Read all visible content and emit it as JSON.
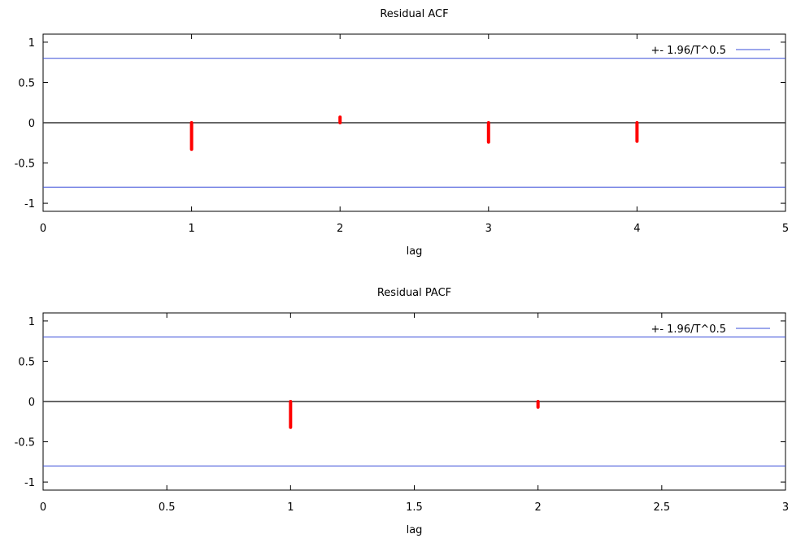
{
  "chart_data": [
    {
      "type": "bar",
      "title": "Residual ACF",
      "xlabel": "lag",
      "ylabel": "",
      "xlim": [
        0,
        5
      ],
      "ylim": [
        -1.1,
        1.1
      ],
      "xticks": [
        "0",
        "1",
        "2",
        "3",
        "4",
        "5"
      ],
      "xtick_values": [
        0,
        1,
        2,
        3,
        4,
        5
      ],
      "yticks": [
        "1",
        "0.5",
        "0",
        "-0.5",
        "-1"
      ],
      "ytick_values": [
        1,
        0.5,
        0,
        -0.5,
        -1
      ],
      "x": [
        1,
        2,
        3,
        4
      ],
      "values": [
        -0.33,
        0.07,
        -0.24,
        -0.23
      ],
      "bound": 0.8,
      "legend": "+- 1.96/T^0.5",
      "legend_position": "top-right",
      "bar_color": "#ff0000",
      "bound_color": "#3a4fd8"
    },
    {
      "type": "bar",
      "title": "Residual PACF",
      "xlabel": "lag",
      "ylabel": "",
      "xlim": [
        0,
        3
      ],
      "ylim": [
        -1.1,
        1.1
      ],
      "xticks": [
        "0",
        "0.5",
        "1",
        "1.5",
        "2",
        "2.5",
        "3"
      ],
      "xtick_values": [
        0,
        0.5,
        1,
        1.5,
        2,
        2.5,
        3
      ],
      "yticks": [
        "1",
        "0.5",
        "0",
        "-0.5",
        "-1"
      ],
      "ytick_values": [
        1,
        0.5,
        0,
        -0.5,
        -1
      ],
      "x": [
        1,
        2
      ],
      "values": [
        -0.32,
        -0.07
      ],
      "bound": 0.8,
      "legend": "+- 1.96/T^0.5",
      "legend_position": "top-right",
      "bar_color": "#ff0000",
      "bound_color": "#3a4fd8"
    }
  ]
}
